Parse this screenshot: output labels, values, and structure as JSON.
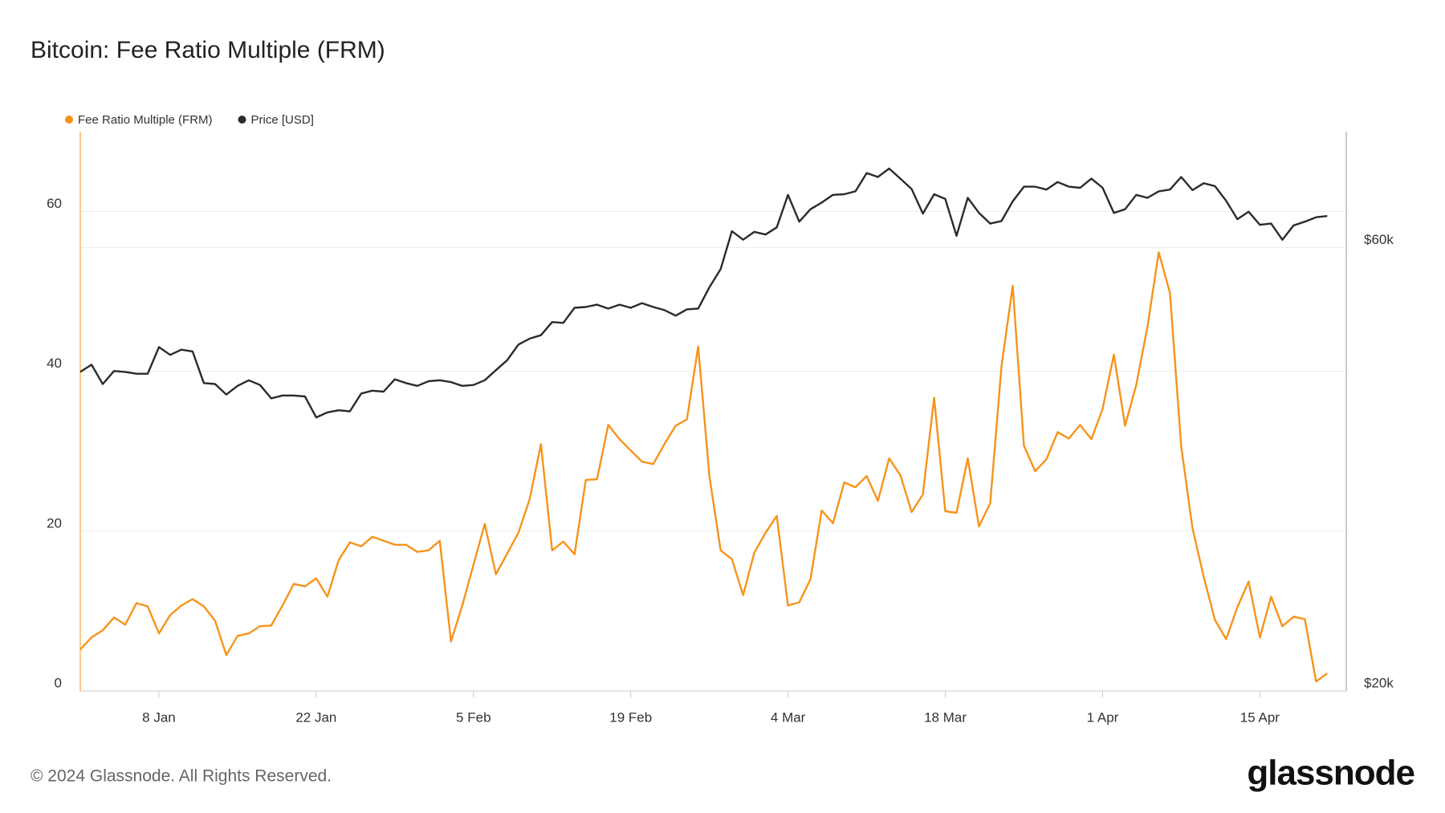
{
  "chart_data": {
    "type": "line",
    "title": "Bitcoin: Fee Ratio Multiple (FRM)",
    "categories": [
      null,
      null,
      null,
      null,
      null,
      null,
      null,
      "8 Jan",
      null,
      null,
      null,
      null,
      null,
      null,
      null,
      null,
      null,
      null,
      null,
      null,
      null,
      "22 Jan",
      null,
      null,
      null,
      null,
      null,
      null,
      null,
      null,
      null,
      null,
      null,
      null,
      null,
      "5 Feb",
      null,
      null,
      null,
      null,
      null,
      null,
      null,
      null,
      null,
      null,
      null,
      null,
      null,
      "19 Feb",
      null,
      null,
      null,
      null,
      null,
      null,
      null,
      null,
      null,
      null,
      null,
      null,
      null,
      "4 Mar",
      null,
      null,
      null,
      null,
      null,
      null,
      null,
      null,
      null,
      null,
      null,
      null,
      null,
      "18 Mar",
      null,
      null,
      null,
      null,
      null,
      null,
      null,
      null,
      null,
      null,
      null,
      null,
      null,
      "1 Apr",
      null,
      null,
      null,
      null,
      null,
      null,
      null,
      null,
      null,
      null,
      null,
      null,
      null,
      "15 Apr",
      null,
      null,
      null,
      null,
      null,
      null
    ],
    "series": [
      {
        "name": "Fee Ratio Multiple (FRM)",
        "color": "#f7931a",
        "values": [
          5.2,
          6.7,
          7.6,
          9.2,
          8.3,
          11.0,
          10.6,
          7.2,
          9.5,
          10.7,
          11.5,
          10.6,
          8.8,
          4.5,
          6.9,
          7.2,
          8.1,
          8.2,
          10.7,
          13.4,
          13.1,
          14.1,
          11.8,
          16.4,
          18.6,
          18.1,
          19.3,
          18.8,
          18.3,
          18.3,
          17.4,
          17.6,
          18.8,
          6.2,
          10.7,
          15.8,
          20.9,
          14.6,
          17.2,
          19.8,
          24.0,
          30.9,
          17.6,
          18.7,
          17.1,
          26.4,
          26.5,
          33.3,
          31.5,
          30.1,
          28.7,
          28.4,
          30.9,
          33.2,
          34.0,
          43.1,
          26.9,
          17.6,
          16.5,
          12.0,
          17.3,
          19.8,
          21.9,
          10.7,
          11.1,
          14.0,
          22.6,
          21.0,
          26.1,
          25.5,
          26.9,
          23.8,
          29.1,
          27.0,
          22.4,
          24.6,
          36.7,
          22.5,
          22.3,
          29.1,
          20.6,
          23.5,
          40.6,
          50.7,
          30.7,
          27.5,
          29.0,
          32.4,
          31.6,
          33.3,
          31.5,
          35.3,
          42.1,
          33.2,
          38.3,
          45.6,
          54.9,
          49.8,
          30.6,
          20.4,
          14.3,
          8.9,
          6.5,
          10.5,
          13.7,
          6.7,
          11.8,
          8.1,
          9.3,
          9.0,
          1.2,
          2.2
        ]
      },
      {
        "name": "Price [USD]",
        "color": "#2b2b2b",
        "axis": "y2",
        "values": [
          44100,
          44900,
          42800,
          44200,
          44100,
          43900,
          43900,
          46900,
          46000,
          46600,
          46400,
          42900,
          42800,
          41700,
          42600,
          43200,
          42700,
          41300,
          41600,
          41600,
          41500,
          39400,
          39900,
          40100,
          40000,
          41800,
          42100,
          42000,
          43300,
          42900,
          42600,
          43100,
          43200,
          43000,
          42600,
          42700,
          43200,
          44300,
          45400,
          47200,
          47900,
          48300,
          49900,
          49800,
          51700,
          51800,
          52100,
          51600,
          52100,
          51700,
          52300,
          51800,
          51400,
          50700,
          51500,
          51600,
          54400,
          56900,
          62500,
          61200,
          62400,
          62000,
          63100,
          68400,
          64000,
          66000,
          67100,
          68400,
          68500,
          69000,
          72200,
          71500,
          73000,
          71200,
          69400,
          65300,
          68500,
          67700,
          61800,
          67900,
          65400,
          63700,
          64100,
          67300,
          69800,
          69800,
          69300,
          70600,
          69800,
          69600,
          71200,
          69600,
          65400,
          66000,
          68400,
          67900,
          69000,
          69300,
          71500,
          69200,
          70400,
          69900,
          67400,
          64400,
          65600,
          63500,
          63700,
          61200,
          63400,
          64000,
          64700,
          64900
        ]
      }
    ],
    "ylim": [
      0,
      70
    ],
    "yticks": [
      0,
      20,
      40,
      60
    ],
    "y2lim": [
      20000,
      80000
    ],
    "y2log": true,
    "y2ticks": [
      {
        "value": 20000,
        "label": "$20k"
      },
      {
        "value": 60000,
        "label": "$60k"
      }
    ],
    "grid": true,
    "legend": "top-left"
  },
  "footer": {
    "copyright": "© 2024 Glassnode. All Rights Reserved.",
    "logo": "glassnode"
  }
}
